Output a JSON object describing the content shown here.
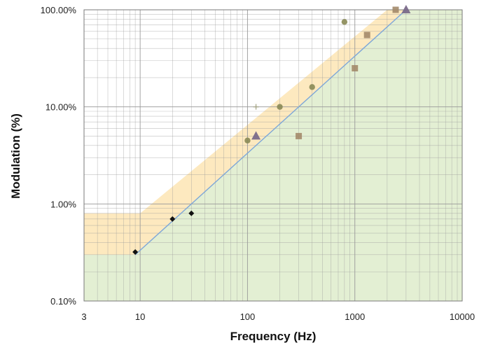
{
  "chart_data": {
    "type": "scatter",
    "title": "",
    "xlabel": "Frequency (Hz)",
    "ylabel": "Modulation (%)",
    "x_scale": "log",
    "y_scale": "log",
    "xlim": [
      3,
      10000
    ],
    "ylim": [
      0.1,
      100
    ],
    "x_ticks": [
      3,
      10,
      100,
      1000,
      10000
    ],
    "x_tick_labels": [
      "3",
      "10",
      "100",
      "1000",
      "10000"
    ],
    "y_ticks": [
      0.1,
      1,
      10,
      100
    ],
    "y_tick_labels": [
      "0.10%",
      "1.00%",
      "10.00%",
      "100.00%"
    ],
    "grid": true,
    "legend": "none",
    "colors": {
      "green_region": "#e3efd3",
      "orange_band": "#fde9bf",
      "boundary_line": "#7ea7d8",
      "grid": "#9a9a9a",
      "diamond": "#111111",
      "circle": "#8a8a55",
      "square": "#a38a6a",
      "triangle": "#7a6a8a",
      "plus": "#a0a080"
    },
    "regions": [
      {
        "kind": "no-effect",
        "color": "green_region",
        "boundary": [
          [
            3,
            0.3
          ],
          [
            9,
            0.3
          ],
          [
            3000,
            100
          ]
        ]
      },
      {
        "kind": "low-risk",
        "color": "orange_band",
        "upper": [
          [
            3,
            0.8
          ],
          [
            10,
            0.8
          ],
          [
            2000,
            100
          ]
        ],
        "lower": [
          [
            3,
            0.3
          ],
          [
            9,
            0.3
          ],
          [
            3000,
            100
          ]
        ]
      }
    ],
    "boundary_line": [
      [
        9,
        0.3
      ],
      [
        3000,
        100
      ]
    ],
    "series": [
      {
        "marker": "diamond",
        "color": "diamond",
        "points": [
          [
            9,
            0.32
          ],
          [
            20,
            0.7
          ],
          [
            30,
            0.8
          ]
        ]
      },
      {
        "marker": "circle",
        "color": "circle",
        "points": [
          [
            100,
            4.5
          ],
          [
            200,
            10
          ],
          [
            400,
            16
          ],
          [
            800,
            75
          ]
        ]
      },
      {
        "marker": "square",
        "color": "square",
        "points": [
          [
            300,
            5
          ],
          [
            1000,
            25
          ],
          [
            1300,
            55
          ],
          [
            2400,
            100
          ]
        ]
      },
      {
        "marker": "triangle",
        "color": "triangle",
        "points": [
          [
            120,
            5
          ],
          [
            3000,
            100
          ]
        ]
      },
      {
        "marker": "plus",
        "color": "plus",
        "points": [
          [
            120,
            10
          ]
        ]
      }
    ]
  }
}
